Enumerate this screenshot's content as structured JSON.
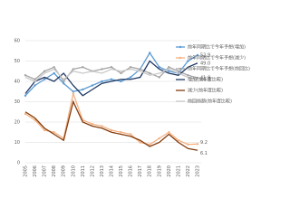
{
  "chart_data": {
    "type": "line",
    "categories": [
      "2005",
      "2006",
      "2007",
      "2008",
      "2009",
      "2010",
      "2011",
      "2012",
      "2013",
      "2014",
      "2015",
      "2016",
      "2017",
      "2018",
      "2019",
      "2020",
      "2021",
      "2022",
      "2023"
    ],
    "ylim": [
      0,
      60
    ],
    "yticks": [
      0,
      10,
      20,
      30,
      40,
      50,
      60
    ],
    "grid": true,
    "legend": "upper right",
    "series": [
      {
        "name": "前年同期比で今年予想(増加)",
        "color": "#5b9bd5",
        "marker": true,
        "values": [
          33,
          38,
          41,
          44,
          39,
          35,
          36,
          38,
          40,
          41,
          40,
          42,
          46,
          54,
          47,
          45,
          44,
          50,
          52.9
        ]
      },
      {
        "name": "前年同期比で今年予想(減少)",
        "color": "#f4b183",
        "marker": true,
        "values": [
          24,
          21,
          16,
          15,
          12,
          34,
          21,
          19,
          18,
          16,
          15,
          14,
          10,
          9,
          12,
          15,
          11,
          9,
          9.2
        ]
      },
      {
        "name": "前年同期比で今年予想(前回比)",
        "color": "#a5a5a5",
        "marker": true,
        "values": [
          43,
          41,
          45,
          47,
          40,
          46,
          47,
          45,
          46,
          47,
          44,
          47,
          46,
          44,
          42,
          47,
          45,
          43,
          41.8
        ]
      },
      {
        "name": "増加(前年度比較)",
        "color": "#1f3864",
        "marker": false,
        "values": [
          34,
          40,
          42,
          40,
          44,
          38,
          33,
          36,
          39,
          40,
          41,
          41,
          42,
          50,
          46,
          44,
          43,
          47,
          49
        ],
        "value_labels": [
          null,
          null,
          null,
          null,
          null,
          null,
          null,
          null,
          null,
          null,
          null,
          null,
          null,
          null,
          null,
          null,
          null,
          null,
          "49.0"
        ]
      },
      {
        "name": "減少(前年度比較)",
        "color": "#843c0c",
        "marker": false,
        "values": [
          25,
          22,
          17,
          14,
          11,
          30,
          20,
          18,
          17,
          15,
          14,
          13,
          11,
          8,
          10,
          14,
          10,
          7,
          6.1
        ]
      },
      {
        "name": "前回前額(前年度比較)",
        "color": "#c9c9c9",
        "marker": false,
        "values": [
          42,
          40,
          44,
          46,
          41,
          45,
          44,
          45,
          44,
          46,
          45,
          46,
          45,
          43,
          44,
          46,
          44,
          42,
          40.9
        ]
      }
    ]
  }
}
